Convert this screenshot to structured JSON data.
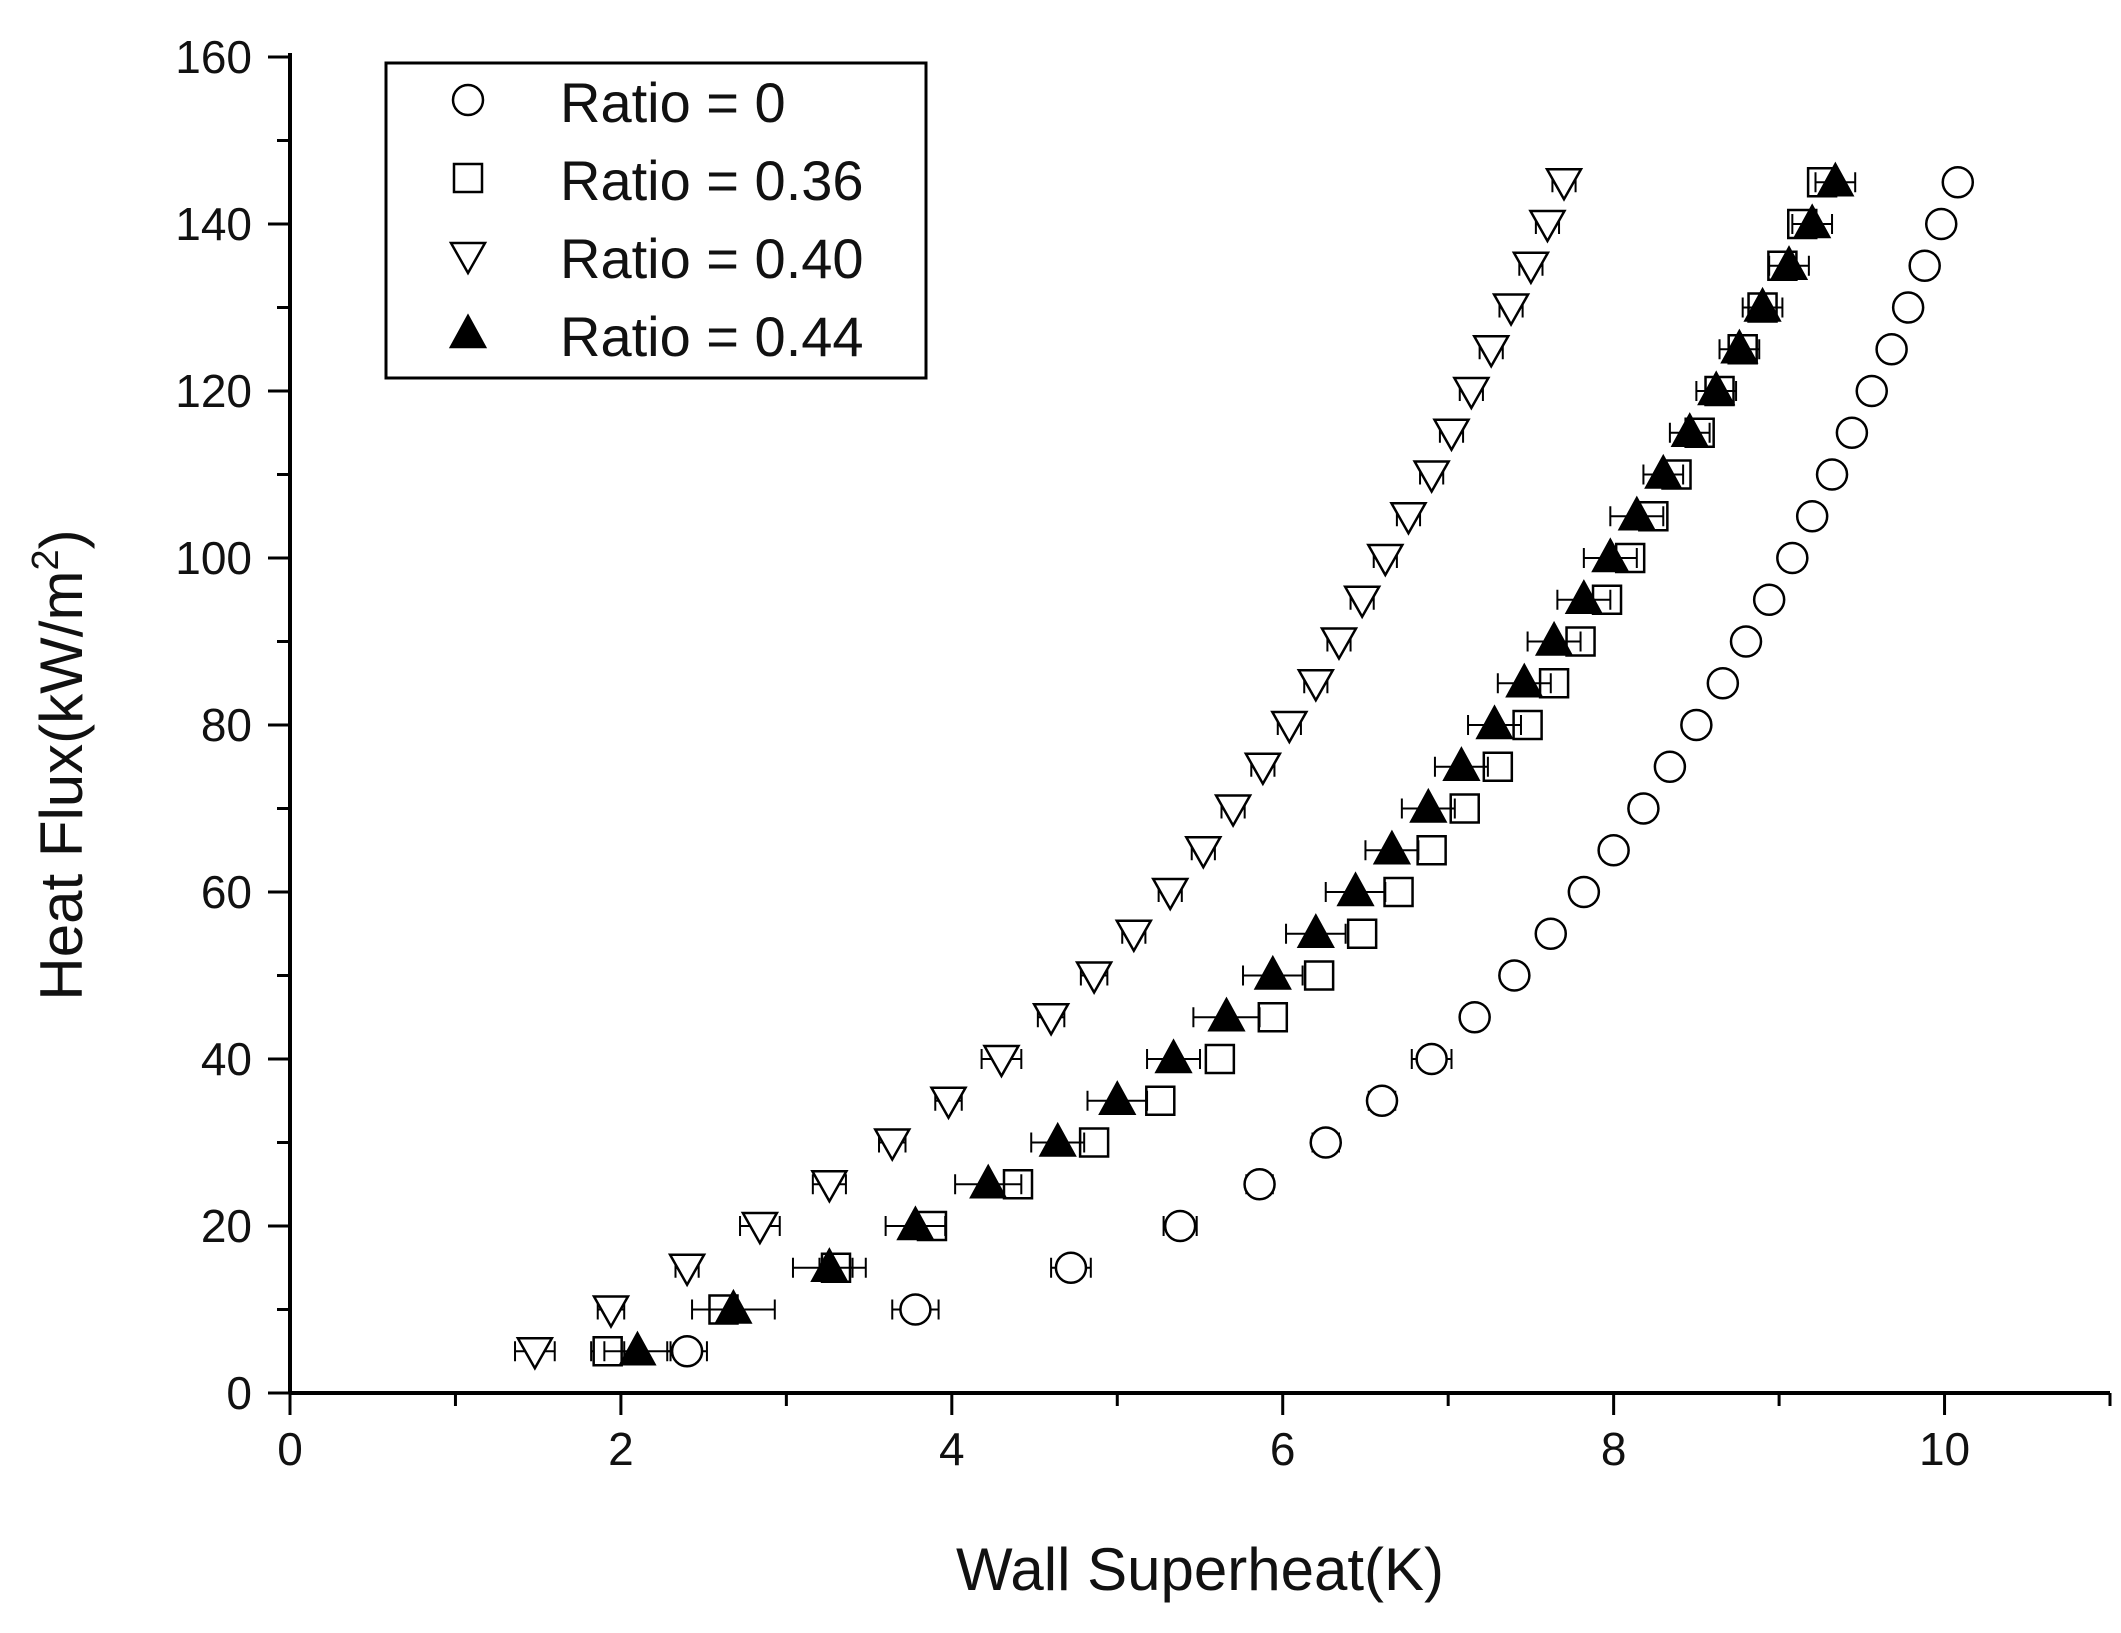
{
  "chart_data": {
    "type": "scatter",
    "title": "",
    "xlabel": "Wall Superheat(K)",
    "ylabel_main": "Heat Flux(kW/m",
    "ylabel_sup": "2",
    "ylabel_close": ")",
    "xlim": [
      0,
      11
    ],
    "ylim": [
      0,
      160
    ],
    "xticks": [
      0,
      2,
      4,
      6,
      8,
      10
    ],
    "yticks": [
      0,
      20,
      40,
      60,
      80,
      100,
      120,
      140,
      160
    ],
    "xtick_labels": [
      "0",
      "2",
      "4",
      "6",
      "8",
      "10"
    ],
    "ytick_labels": [
      "0",
      "20",
      "40",
      "60",
      "80",
      "100",
      "120",
      "140",
      "160"
    ],
    "grid": false,
    "legend_position": "top-left",
    "y": [
      5,
      10,
      15,
      20,
      25,
      30,
      35,
      40,
      45,
      50,
      55,
      60,
      65,
      70,
      75,
      80,
      85,
      90,
      95,
      100,
      105,
      110,
      115,
      120,
      125,
      130,
      135,
      140,
      145
    ],
    "series": [
      {
        "name": "Ratio = 0",
        "marker": "open-circle",
        "x": [
          2.4,
          3.78,
          4.72,
          5.38,
          5.86,
          6.26,
          6.6,
          6.9,
          7.16,
          7.4,
          7.62,
          7.82,
          8.0,
          8.18,
          8.34,
          8.5,
          8.66,
          8.8,
          8.94,
          9.08,
          9.2,
          9.32,
          9.44,
          9.56,
          9.68,
          9.78,
          9.88,
          9.98,
          10.08
        ],
        "xerr": [
          0.12,
          0.14,
          0.12,
          0.1,
          0.08,
          0.08,
          0.08,
          0.12,
          0.07,
          0.06,
          0.06,
          0.06,
          0.05,
          0.05,
          0.05,
          0.05,
          0.05,
          0.05,
          0.05,
          0.05,
          0.05,
          0.05,
          0.05,
          0.05,
          0.05,
          0.05,
          0.05,
          0.05,
          0.05
        ]
      },
      {
        "name": "Ratio = 0.36",
        "marker": "open-square",
        "x": [
          1.92,
          2.62,
          3.3,
          3.88,
          4.4,
          4.86,
          5.26,
          5.62,
          5.94,
          6.22,
          6.48,
          6.7,
          6.9,
          7.1,
          7.3,
          7.48,
          7.64,
          7.8,
          7.96,
          8.1,
          8.24,
          8.38,
          8.52,
          8.64,
          8.78,
          8.9,
          9.02,
          9.14,
          9.26
        ],
        "xerr": [
          0.1,
          0.08,
          0.1,
          0.07,
          0.07,
          0.07,
          0.07,
          0.07,
          0.06,
          0.06,
          0.06,
          0.06,
          0.06,
          0.06,
          0.06,
          0.06,
          0.06,
          0.06,
          0.07,
          0.07,
          0.07,
          0.07,
          0.07,
          0.07,
          0.07,
          0.07,
          0.07,
          0.07,
          0.07
        ]
      },
      {
        "name": "Ratio = 0.40",
        "marker": "open-triangle-down",
        "x": [
          1.48,
          1.94,
          2.4,
          2.84,
          3.26,
          3.64,
          3.98,
          4.3,
          4.6,
          4.86,
          5.1,
          5.32,
          5.52,
          5.7,
          5.88,
          6.04,
          6.2,
          6.34,
          6.48,
          6.62,
          6.76,
          6.9,
          7.02,
          7.14,
          7.26,
          7.38,
          7.5,
          7.6,
          7.7
        ],
        "xerr": [
          0.12,
          0.08,
          0.07,
          0.12,
          0.1,
          0.08,
          0.08,
          0.12,
          0.08,
          0.08,
          0.07,
          0.07,
          0.07,
          0.07,
          0.07,
          0.07,
          0.07,
          0.07,
          0.07,
          0.07,
          0.07,
          0.07,
          0.07,
          0.07,
          0.07,
          0.07,
          0.07,
          0.07,
          0.07
        ]
      },
      {
        "name": "Ratio = 0.44",
        "marker": "filled-triangle-up",
        "x": [
          2.1,
          2.68,
          3.26,
          3.78,
          4.22,
          4.64,
          5.0,
          5.34,
          5.66,
          5.94,
          6.2,
          6.44,
          6.66,
          6.88,
          7.08,
          7.28,
          7.46,
          7.64,
          7.82,
          7.98,
          8.14,
          8.3,
          8.46,
          8.62,
          8.76,
          8.9,
          9.06,
          9.2,
          9.34
        ],
        "xerr": [
          0.2,
          0.25,
          0.22,
          0.18,
          0.2,
          0.16,
          0.18,
          0.16,
          0.2,
          0.18,
          0.18,
          0.18,
          0.16,
          0.16,
          0.16,
          0.16,
          0.16,
          0.16,
          0.16,
          0.16,
          0.16,
          0.12,
          0.12,
          0.12,
          0.12,
          0.12,
          0.12,
          0.12,
          0.12
        ]
      }
    ]
  }
}
